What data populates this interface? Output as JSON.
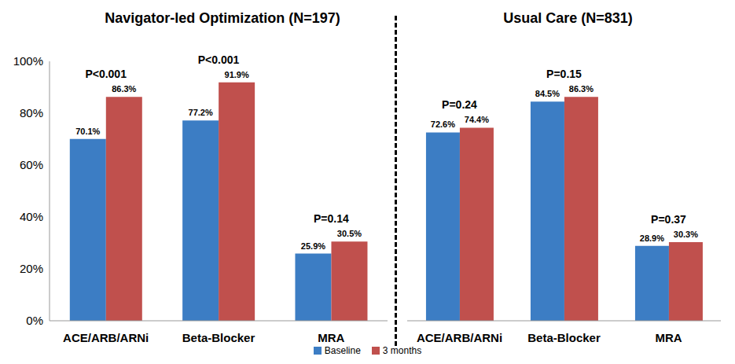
{
  "chart_data": [
    {
      "type": "bar",
      "title": "Navigator-led Optimization (N=197)",
      "categories": [
        "ACE/ARB/ARNi",
        "Beta-Blocker",
        "MRA"
      ],
      "series": [
        {
          "name": "Baseline",
          "color": "#3c7dc4",
          "values": [
            70.1,
            77.2,
            25.9
          ],
          "value_labels": [
            "70.1%",
            "77.2%",
            "25.9%"
          ]
        },
        {
          "name": "3 months",
          "color": "#c0504d",
          "values": [
            86.3,
            91.9,
            30.5
          ],
          "value_labels": [
            "86.3%",
            "91.9%",
            "30.5%"
          ]
        }
      ],
      "annotations": [
        "P<0.001",
        "P<0.001",
        "P=0.14"
      ],
      "ylim": [
        0,
        100
      ],
      "yticks": [
        {
          "value": 0,
          "label": "0%"
        },
        {
          "value": 20,
          "label": "20%"
        },
        {
          "value": 40,
          "label": "40%"
        },
        {
          "value": 60,
          "label": "60%"
        },
        {
          "value": 80,
          "label": "80%"
        },
        {
          "value": 100,
          "label": "100%"
        }
      ],
      "grid": false,
      "data_labels": true,
      "legend": "bottom"
    },
    {
      "type": "bar",
      "title": "Usual Care (N=831)",
      "categories": [
        "ACE/ARB/ARNi",
        "Beta-Blocker",
        "MRA"
      ],
      "series": [
        {
          "name": "Baseline",
          "color": "#3c7dc4",
          "values": [
            72.6,
            84.5,
            28.9
          ],
          "value_labels": [
            "72.6%",
            "84.5%",
            "28.9%"
          ]
        },
        {
          "name": "3 months",
          "color": "#c0504d",
          "values": [
            74.4,
            86.3,
            30.3
          ],
          "value_labels": [
            "74.4%",
            "86.3%",
            "30.3%"
          ]
        }
      ],
      "annotations": [
        "P=0.24",
        "P=0.15",
        "P=0.37"
      ],
      "ylim": [
        0,
        100
      ],
      "yticks": [
        {
          "value": 0,
          "label": "0%"
        },
        {
          "value": 20,
          "label": "20%"
        },
        {
          "value": 40,
          "label": "40%"
        },
        {
          "value": 60,
          "label": "60%"
        },
        {
          "value": 80,
          "label": "80%"
        },
        {
          "value": 100,
          "label": "100%"
        }
      ],
      "grid": false,
      "data_labels": true,
      "tick_labels": "x"
    }
  ]
}
